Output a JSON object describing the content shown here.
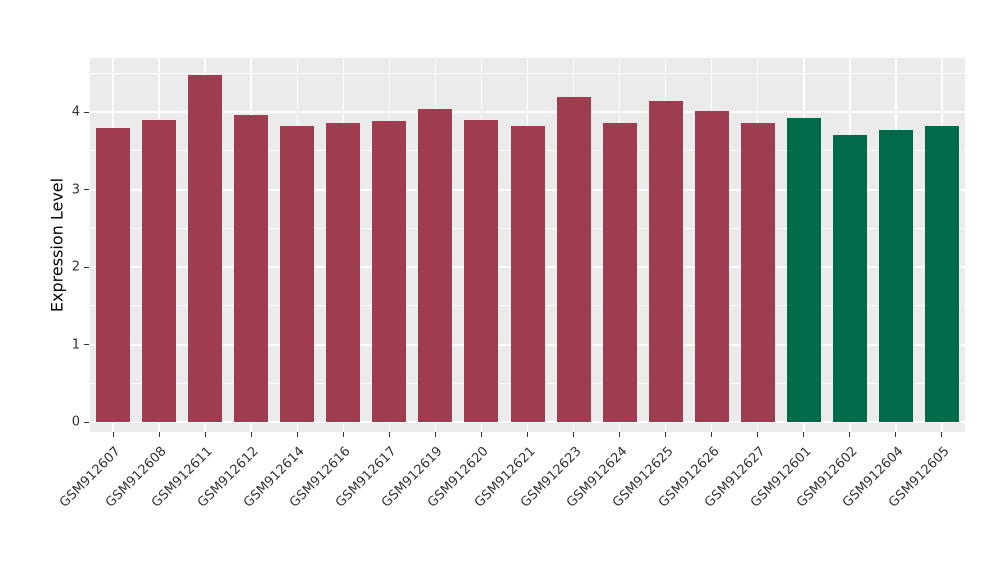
{
  "chart_data": {
    "type": "bar",
    "title": "",
    "xlabel": "",
    "ylabel": "Expression Level",
    "ylim": [
      0,
      4.7
    ],
    "yticks": [
      0,
      1,
      2,
      3,
      4
    ],
    "grid": "on",
    "legend": "none",
    "panel_background": "#EBEBEB",
    "grid_color": "#FFFFFF",
    "categories": [
      "GSM912607",
      "GSM912608",
      "GSM912611",
      "GSM912612",
      "GSM912614",
      "GSM912616",
      "GSM912617",
      "GSM912619",
      "GSM912620",
      "GSM912621",
      "GSM912623",
      "GSM912624",
      "GSM912625",
      "GSM912626",
      "GSM912627",
      "GSM912601",
      "GSM912602",
      "GSM912604",
      "GSM912605"
    ],
    "series": [
      {
        "name": "Expression Level",
        "values": [
          3.8,
          3.9,
          4.48,
          3.96,
          3.82,
          3.86,
          3.89,
          4.04,
          3.9,
          3.82,
          4.2,
          3.86,
          4.14,
          4.02,
          3.86,
          3.93,
          3.7,
          3.77,
          3.82
        ]
      }
    ],
    "groups": [
      "red",
      "red",
      "red",
      "red",
      "red",
      "red",
      "red",
      "red",
      "red",
      "red",
      "red",
      "red",
      "red",
      "red",
      "red",
      "green",
      "green",
      "green",
      "green"
    ],
    "group_colors": {
      "red": "#9E3D4F",
      "green": "#016A4B"
    }
  }
}
